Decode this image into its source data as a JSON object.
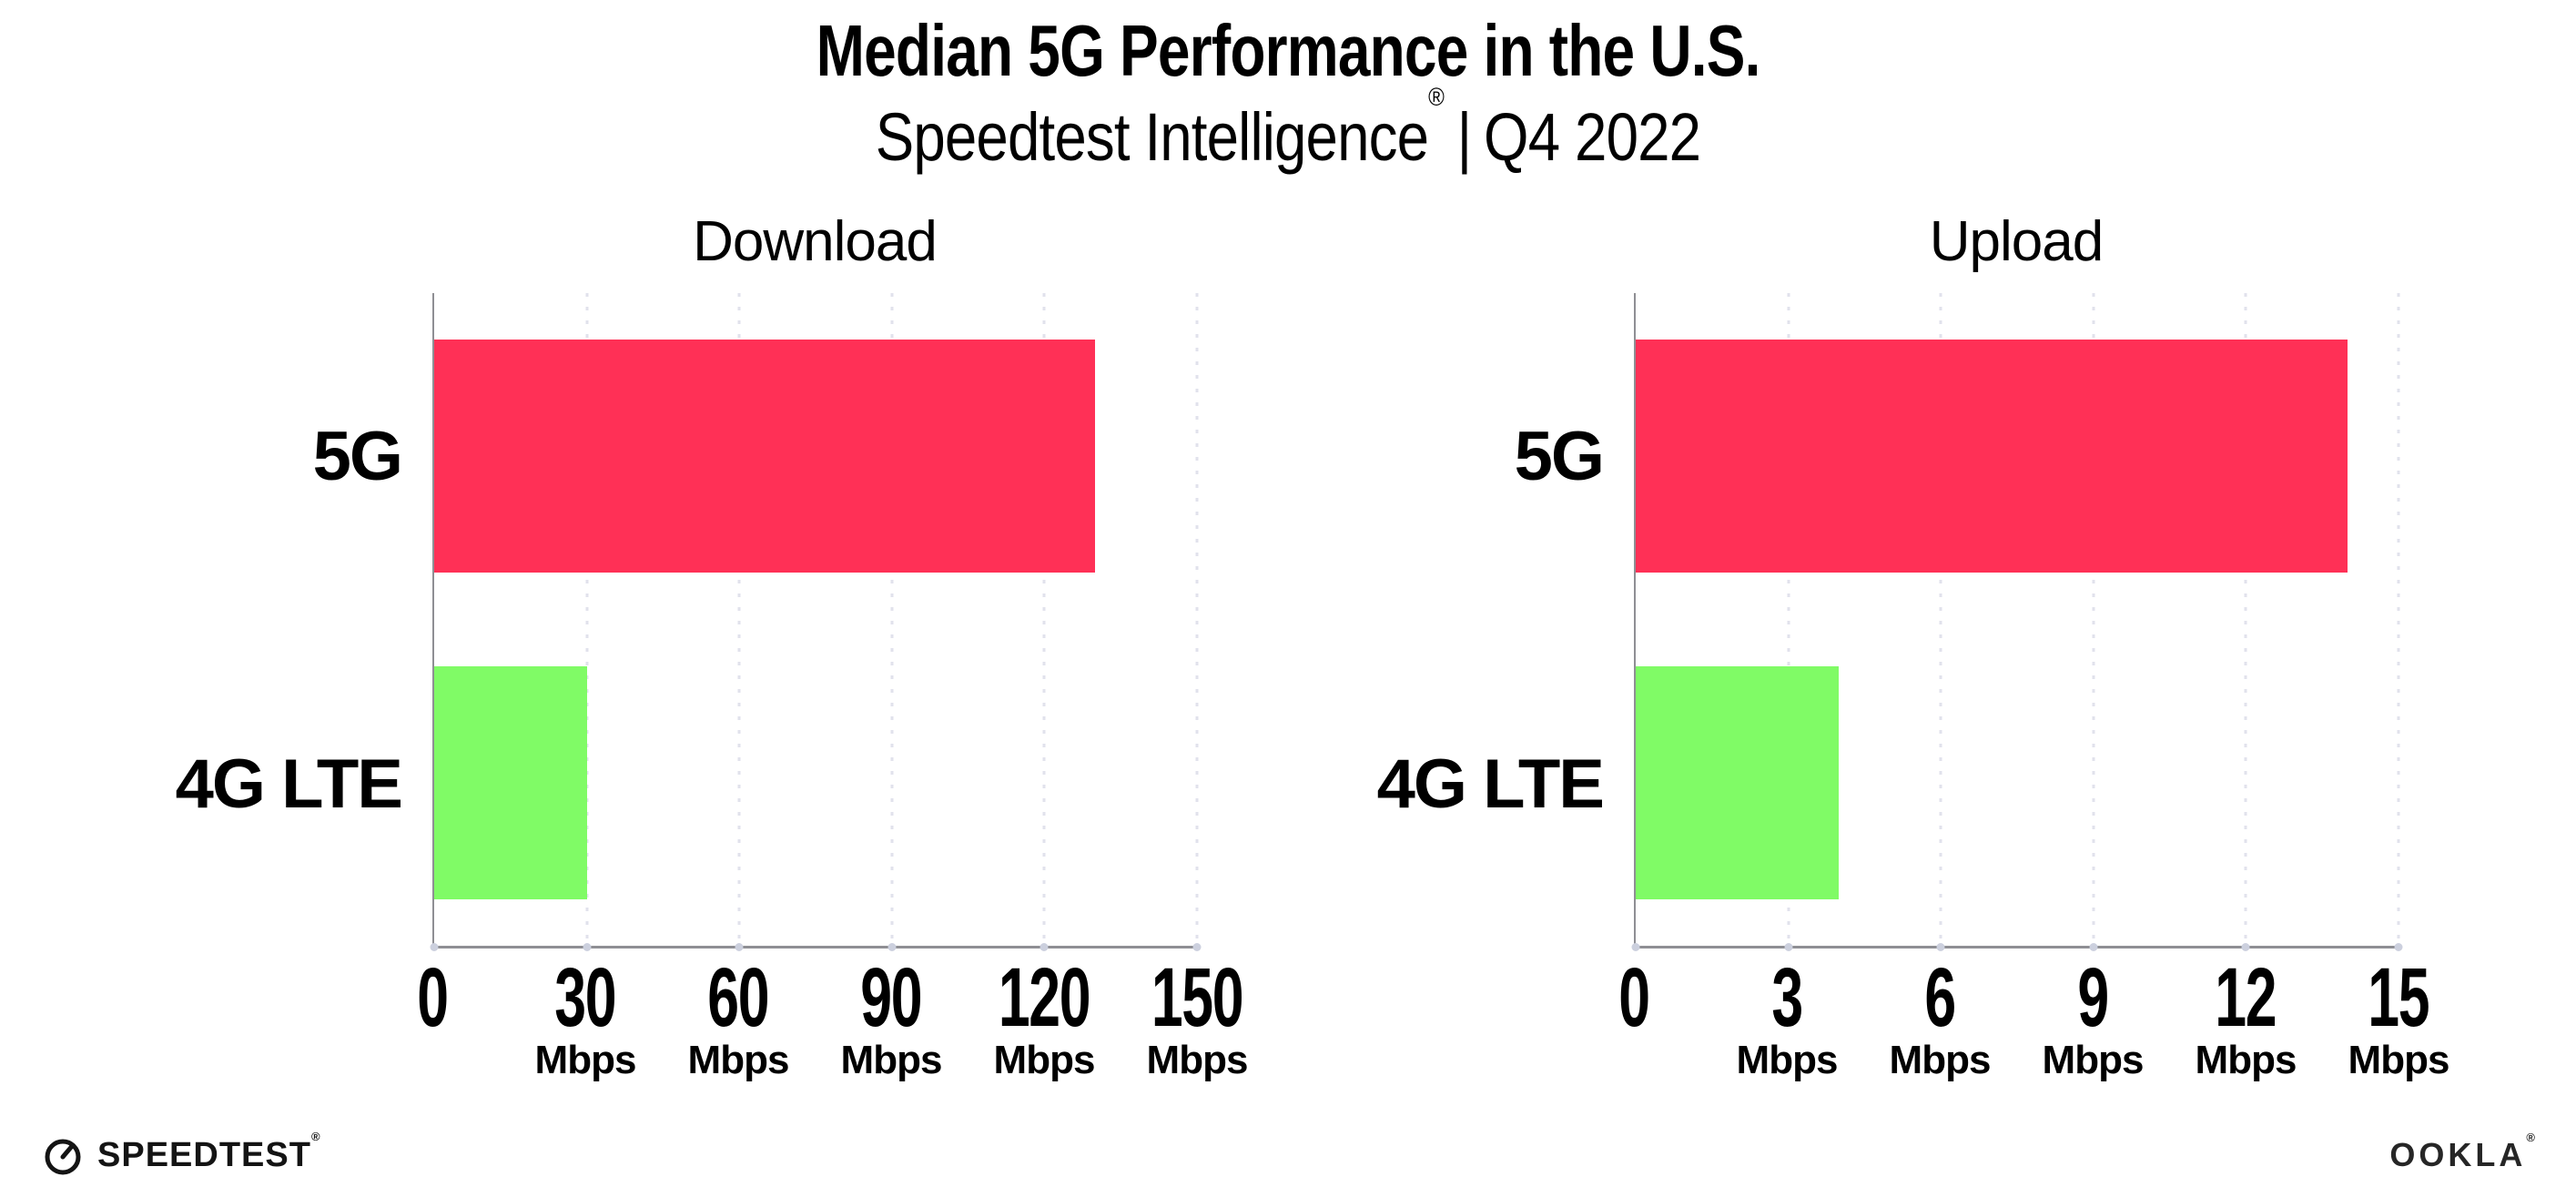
{
  "header": {
    "title": "Median 5G Performance in the U.S.",
    "subtitle": {
      "brand": "Speedtest Intelligence",
      "registered_mark": "®",
      "separator": "|",
      "period": "Q4 2022"
    }
  },
  "chart_data": [
    {
      "type": "bar",
      "orientation": "horizontal",
      "title": "Download",
      "categories": [
        "5G",
        "4G LTE"
      ],
      "values": [
        130,
        30
      ],
      "unit": "Mbps",
      "xlabel": "",
      "ylabel": "",
      "xlim": [
        0,
        150
      ],
      "xticks": [
        0,
        30,
        60,
        90,
        120,
        150
      ],
      "bar_colors": [
        "#FF3056",
        "#80FB66"
      ],
      "grid": "vertical-dotted",
      "legend": "none"
    },
    {
      "type": "bar",
      "orientation": "horizontal",
      "title": "Upload",
      "categories": [
        "5G",
        "4G LTE"
      ],
      "values": [
        14,
        4
      ],
      "unit": "Mbps",
      "xlabel": "",
      "ylabel": "",
      "xlim": [
        0,
        15
      ],
      "xticks": [
        0,
        3,
        6,
        9,
        12,
        15
      ],
      "bar_colors": [
        "#FF3056",
        "#80FB66"
      ],
      "grid": "vertical-dotted",
      "legend": "none"
    }
  ],
  "footer": {
    "speedtest_wordmark": "SPEEDTEST",
    "speedtest_registered_mark": "®",
    "ookla_wordmark": "OOKLA",
    "ookla_registered_mark": "®"
  },
  "colors": {
    "bar_5g": "#FF3056",
    "bar_4g_lte": "#80FB66",
    "axis_line": "#8F8F94",
    "gridline_dots": "#E1E2EC",
    "text": "#000000",
    "background": "#FFFFFF"
  }
}
